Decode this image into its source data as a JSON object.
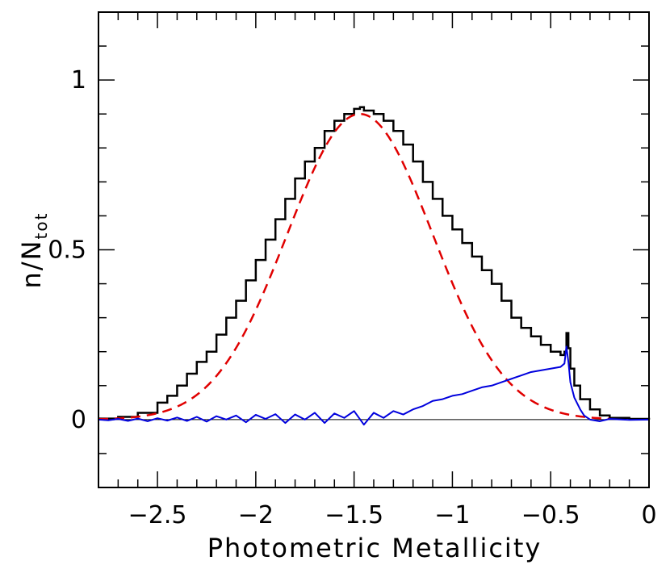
{
  "chart_data": {
    "type": "line",
    "title": "",
    "xlabel": "Photometric Metallicity",
    "ylabel_main": "n/N",
    "ylabel_sub": "tot",
    "xlim": [
      -2.8,
      0
    ],
    "ylim": [
      -0.2,
      1.2
    ],
    "xticks": [
      -2.5,
      -2,
      -1.5,
      -1,
      -0.5,
      0
    ],
    "xtick_labels": [
      "−2.5",
      "−2",
      "−1.5",
      "−1",
      "−0.5",
      "0"
    ],
    "yticks": [
      0,
      0.5,
      1
    ],
    "ytick_labels": [
      "0",
      "0.5",
      "1"
    ],
    "grid": false,
    "legend": "none",
    "reference_line": {
      "y": 0,
      "color": "#000000"
    },
    "series": [
      {
        "style": "step",
        "color": "#000000",
        "x": [
          -2.8,
          -2.7,
          -2.6,
          -2.5,
          -2.45,
          -2.4,
          -2.35,
          -2.3,
          -2.25,
          -2.2,
          -2.15,
          -2.1,
          -2.05,
          -2.0,
          -1.95,
          -1.9,
          -1.85,
          -1.8,
          -1.75,
          -1.7,
          -1.65,
          -1.6,
          -1.55,
          -1.5,
          -1.47,
          -1.45,
          -1.4,
          -1.35,
          -1.3,
          -1.25,
          -1.2,
          -1.15,
          -1.1,
          -1.05,
          -1.0,
          -0.95,
          -0.9,
          -0.85,
          -0.8,
          -0.75,
          -0.7,
          -0.65,
          -0.6,
          -0.55,
          -0.5,
          -0.45,
          -0.43,
          -0.42,
          -0.41,
          -0.4,
          -0.38,
          -0.35,
          -0.3,
          -0.25,
          -0.2,
          -0.1,
          0.0
        ],
        "y": [
          0.003,
          0.008,
          0.02,
          0.05,
          0.07,
          0.1,
          0.135,
          0.17,
          0.2,
          0.25,
          0.3,
          0.35,
          0.41,
          0.47,
          0.53,
          0.59,
          0.65,
          0.71,
          0.76,
          0.8,
          0.85,
          0.88,
          0.9,
          0.915,
          0.92,
          0.91,
          0.9,
          0.88,
          0.85,
          0.81,
          0.76,
          0.7,
          0.65,
          0.6,
          0.56,
          0.52,
          0.48,
          0.44,
          0.4,
          0.35,
          0.3,
          0.27,
          0.245,
          0.22,
          0.2,
          0.19,
          0.2,
          0.255,
          0.21,
          0.15,
          0.1,
          0.06,
          0.03,
          0.012,
          0.005,
          0.002,
          0.0
        ]
      },
      {
        "style": "dashed",
        "color": "#e00000",
        "gaussian": {
          "mean": -1.47,
          "sigma": 0.37,
          "amplitude": 0.9
        },
        "x_range": [
          -2.8,
          -0.2
        ]
      },
      {
        "style": "line",
        "color": "#0000dd",
        "x": [
          -2.8,
          -2.75,
          -2.7,
          -2.65,
          -2.6,
          -2.55,
          -2.5,
          -2.45,
          -2.4,
          -2.35,
          -2.3,
          -2.25,
          -2.2,
          -2.15,
          -2.1,
          -2.05,
          -2.0,
          -1.95,
          -1.9,
          -1.85,
          -1.8,
          -1.75,
          -1.7,
          -1.65,
          -1.6,
          -1.55,
          -1.5,
          -1.45,
          -1.4,
          -1.35,
          -1.3,
          -1.25,
          -1.2,
          -1.15,
          -1.1,
          -1.05,
          -1.0,
          -0.95,
          -0.9,
          -0.85,
          -0.8,
          -0.75,
          -0.7,
          -0.65,
          -0.6,
          -0.55,
          -0.5,
          -0.45,
          -0.43,
          -0.42,
          -0.41,
          -0.4,
          -0.38,
          -0.35,
          -0.33,
          -0.3,
          -0.25,
          -0.2,
          -0.1,
          0.0
        ],
        "y": [
          0.0,
          -0.002,
          0.002,
          -0.004,
          0.003,
          -0.005,
          0.004,
          -0.003,
          0.006,
          -0.004,
          0.008,
          -0.006,
          0.01,
          0.0,
          0.012,
          -0.008,
          0.014,
          0.002,
          0.016,
          -0.01,
          0.015,
          0.0,
          0.02,
          -0.01,
          0.018,
          0.005,
          0.025,
          -0.015,
          0.02,
          0.005,
          0.025,
          0.015,
          0.03,
          0.04,
          0.055,
          0.06,
          0.07,
          0.075,
          0.085,
          0.095,
          0.1,
          0.11,
          0.12,
          0.13,
          0.14,
          0.145,
          0.15,
          0.155,
          0.165,
          0.215,
          0.17,
          0.11,
          0.065,
          0.03,
          0.012,
          0.0,
          -0.005,
          0.002,
          -0.001,
          0.0
        ]
      }
    ]
  }
}
